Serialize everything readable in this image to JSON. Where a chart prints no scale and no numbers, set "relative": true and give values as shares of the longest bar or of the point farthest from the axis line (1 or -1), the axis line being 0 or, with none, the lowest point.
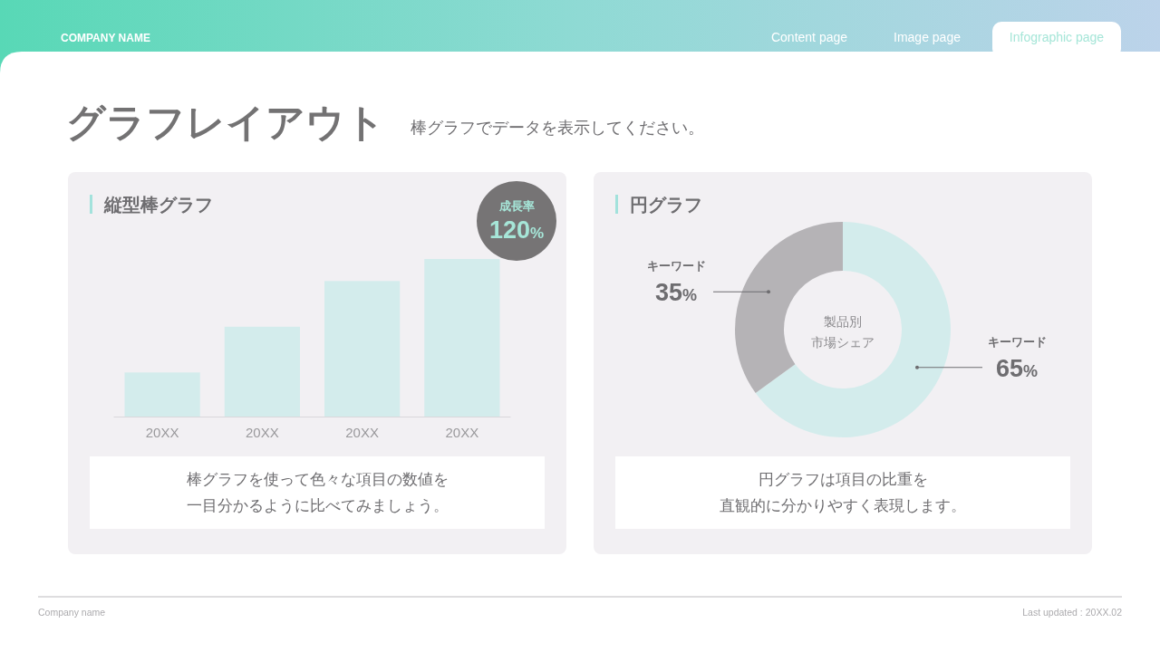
{
  "chart_data": [
    {
      "type": "other",
      "title": "グラフレイアウト",
      "subtitle": "棒グラフでデータを表示してください。",
      "annotations": [
        "COMPANY NAME",
        "Content page",
        "Image page",
        "Infographic page",
        "Company name",
        "Last updated : 20XX.02"
      ]
    },
    {
      "type": "bar",
      "title": "縦型棒グラフ",
      "categories": [
        "20XX",
        "20XX",
        "20XX",
        "20XX"
      ],
      "values": [
        0.28,
        0.57,
        0.86,
        1
      ],
      "relative": true,
      "color": "#d3ecec",
      "annotations": [
        "成長率",
        "120%",
        "棒グラフを使って色々な項目の数値を",
        "一目分かるように比べてみましょう。"
      ]
    },
    {
      "type": "donut",
      "title": "円グラフ",
      "categories": [
        "キーワード",
        "キーワード"
      ],
      "values": [
        65,
        35
      ],
      "colors": [
        "#d3ecec",
        "#b5b3b6"
      ],
      "value_labels": [
        "65%",
        "35%"
      ],
      "annotations": [
        "製品別",
        "市場シェア",
        "円グラフは項目の比重を",
        "直観的に分かりやすく表現します。"
      ]
    }
  ]
}
